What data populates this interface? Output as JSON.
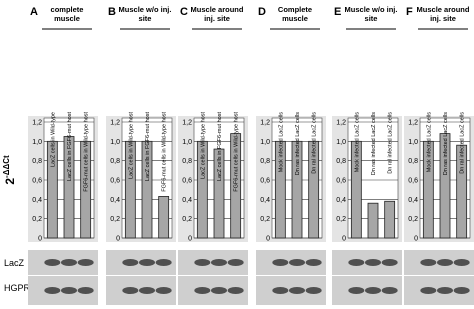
{
  "ylabel": {
    "base": "2",
    "exponent": "-ΔΔCt"
  },
  "blot_labels": [
    "LacZ",
    "HGPRT"
  ],
  "chart_data": [
    {
      "type": "bar",
      "label": "A",
      "title": "complete muscle",
      "categories": [
        "LacZ cells in Wild-type",
        "LacZ cells in FGF6-mut host",
        "FGF6-mut cells in Wild-type host"
      ],
      "values": [
        1.0,
        1.05,
        1.0
      ],
      "color": "#a6a6a6",
      "ylim": [
        0,
        1.2
      ],
      "yticks": [
        0,
        {
          "value": 0.2,
          "label": "0,2"
        },
        {
          "value": 0.4,
          "label": "0,4"
        },
        {
          "value": 0.6,
          "label": "0,6"
        },
        {
          "value": 0.8,
          "label": "0,8"
        },
        {
          "value": 1.0,
          "label": "1,0"
        },
        {
          "value": 1.2,
          "label": "1,2"
        }
      ],
      "grid": true
    },
    {
      "type": "bar",
      "label": "B",
      "title": "Muscle w/o inj. site",
      "categories": [
        "LacZ cells in Wild-type host",
        "LacZ cells in FGF6-mut host",
        "FGF6-mut cells in Wild-type host"
      ],
      "values": [
        1.0,
        1.0,
        0.43
      ],
      "color": "#a6a6a6",
      "ylim": [
        0,
        1.2
      ],
      "yticks": [
        0,
        {
          "value": 0.2,
          "label": "0,2"
        },
        {
          "value": 0.4,
          "label": "0,4"
        },
        {
          "value": 0.6,
          "label": "0,6"
        },
        {
          "value": 0.8,
          "label": "0,8"
        },
        {
          "value": 1.0,
          "label": "1,0"
        },
        {
          "value": 1.2,
          "label": "1,2"
        }
      ],
      "grid": true
    },
    {
      "type": "bar",
      "label": "C",
      "title": "Muscle around inj. site",
      "categories": [
        "LacZ cells in Wild-type host",
        "LacZ cells in FGF6-mut host",
        "FGF6-mut cells in Wild-type host"
      ],
      "values": [
        1.0,
        0.92,
        1.08
      ],
      "color": "#a6a6a6",
      "ylim": [
        0,
        1.2
      ],
      "yticks": [
        0,
        {
          "value": 0.2,
          "label": "0,2"
        },
        {
          "value": 0.4,
          "label": "0,4"
        },
        {
          "value": 0.6,
          "label": "0,6"
        },
        {
          "value": 0.8,
          "label": "0,8"
        },
        {
          "value": 1.0,
          "label": "1,0"
        },
        {
          "value": 1.2,
          "label": "1,2"
        }
      ],
      "grid": true
    },
    {
      "type": "bar",
      "label": "D",
      "title": "Complete muscle",
      "categories": [
        "Mock infected LacZ cells",
        "Dn ras infected LacZ cells",
        "Dn ral infected LacZ cells"
      ],
      "values": [
        1.0,
        1.0,
        1.0
      ],
      "color": "#a6a6a6",
      "ylim": [
        0,
        1.2
      ],
      "yticks": [
        0,
        {
          "value": 0.2,
          "label": "0,2"
        },
        {
          "value": 0.4,
          "label": "0,4"
        },
        {
          "value": 0.6,
          "label": "0,6"
        },
        {
          "value": 0.8,
          "label": "0,8"
        },
        {
          "value": 1.0,
          "label": "1,0"
        },
        {
          "value": 1.2,
          "label": "1,2"
        }
      ],
      "grid": true
    },
    {
      "type": "bar",
      "label": "E",
      "title": "Muscle w/o inj. site",
      "categories": [
        "Mock infected LacZ cells",
        "Dn ras infected LacZ cells",
        "Dn ral infected LacZ cells"
      ],
      "values": [
        1.0,
        0.36,
        0.38
      ],
      "color": "#a6a6a6",
      "ylim": [
        0,
        1.2
      ],
      "yticks": [
        0,
        {
          "value": 0.2,
          "label": "0,2"
        },
        {
          "value": 0.4,
          "label": "0,4"
        },
        {
          "value": 0.6,
          "label": "0,6"
        },
        {
          "value": 0.8,
          "label": "0,8"
        },
        {
          "value": 1.0,
          "label": "1,0"
        },
        {
          "value": 1.2,
          "label": "1,2"
        }
      ],
      "grid": true
    },
    {
      "type": "bar",
      "label": "F",
      "title": "Muscle around inj. site",
      "categories": [
        "Mock infected LacZ cells",
        "Dn ras infected LacZ cells",
        "Dn ral infected LacZ cells"
      ],
      "values": [
        1.0,
        1.08,
        0.96
      ],
      "color": "#a6a6a6",
      "ylim": [
        0,
        1.2
      ],
      "yticks": [
        0,
        {
          "value": 0.2,
          "label": "0,2"
        },
        {
          "value": 0.4,
          "label": "0,4"
        },
        {
          "value": 0.6,
          "label": "0,6"
        },
        {
          "value": 0.8,
          "label": "0,8"
        },
        {
          "value": 1.0,
          "label": "1,0"
        },
        {
          "value": 1.2,
          "label": "1,2"
        }
      ],
      "grid": true
    }
  ]
}
